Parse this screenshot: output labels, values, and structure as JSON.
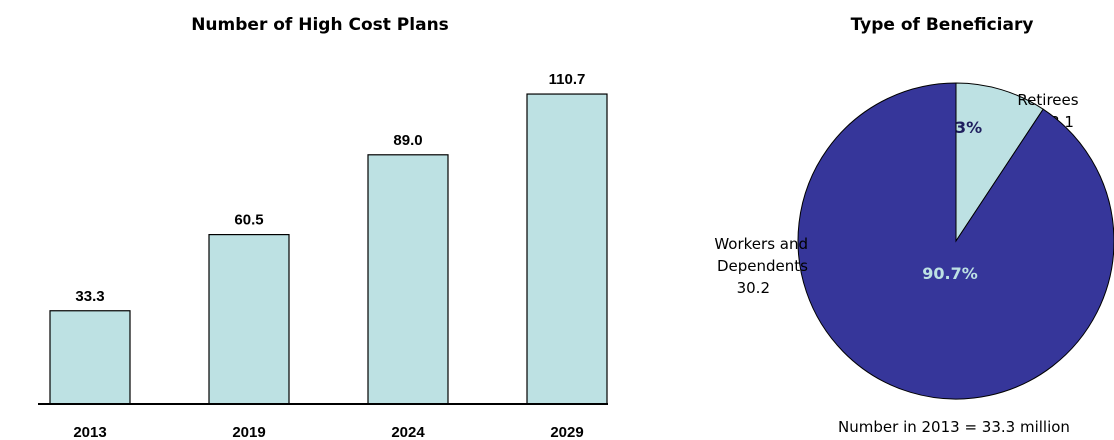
{
  "chart_data": [
    {
      "type": "bar",
      "title": "Number of High Cost Plans",
      "categories": [
        "2013",
        "2019",
        "2024",
        "2029"
      ],
      "values": [
        33.3,
        60.5,
        89.0,
        110.7
      ],
      "value_labels": [
        "33.3",
        "60.5",
        "89.0",
        "110.7"
      ],
      "ylim": [
        0,
        120
      ],
      "grid": false,
      "colors": {
        "bar_fill": "#bde1e3",
        "bar_stroke": "#000000"
      }
    },
    {
      "type": "pie",
      "title": "Type of Beneficiary",
      "slices": [
        {
          "label_lines": [
            "Retirees",
            "3.1"
          ],
          "value": 3.1,
          "percent": 9.3,
          "percent_label": "9.3%",
          "color": "#bde1e3",
          "pct_color": "#1f1f5e"
        },
        {
          "label_lines": [
            "Workers and",
            "Dependents",
            "30.2"
          ],
          "value": 30.2,
          "percent": 90.7,
          "percent_label": "90.7%",
          "color": "#36369a",
          "pct_color": "#bde1e3"
        }
      ],
      "footnote": "Number in 2013 = 33.3 million"
    }
  ]
}
